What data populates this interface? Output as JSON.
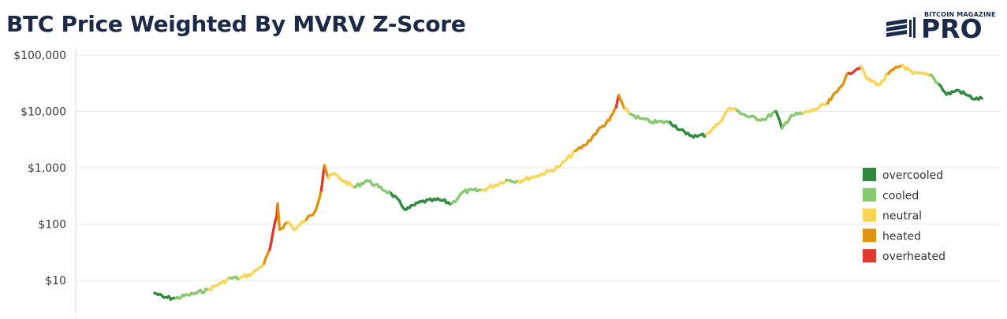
{
  "title": "BTC Price Weighted By MVRV Z-Score",
  "logo": {
    "small_text": "BITCOIN MAGAZINE",
    "big_text": "PRO"
  },
  "colors": {
    "overcooled": "#2e8b3e",
    "cooled": "#86c96e",
    "neutral": "#fbd55a",
    "heated": "#e0940e",
    "overheated": "#e03a2e",
    "grid": "#e9e9e9",
    "title": "#1c2a4a"
  },
  "chart_data": {
    "type": "line",
    "title": "BTC Price Weighted By MVRV Z-Score",
    "xlabel": "",
    "ylabel": "",
    "y_scale": "log",
    "ylim": [
      3,
      150000
    ],
    "y_ticks": [
      10,
      100,
      1000,
      10000,
      100000
    ],
    "y_tick_labels": [
      "$10",
      "$100",
      "$1,000",
      "$10,000",
      "$100,000"
    ],
    "grid": "horizontal",
    "legend_position": "right",
    "legend": [
      "overcooled",
      "cooled",
      "neutral",
      "heated",
      "overheated"
    ],
    "series": [
      {
        "points": [
          [
            "2011-08-01",
            6,
            "cooled"
          ],
          [
            "2011-09-15",
            5,
            "overcooled"
          ],
          [
            "2011-11-15",
            4.8,
            "overcooled"
          ],
          [
            "2012-01-15",
            5.5,
            "cooled"
          ],
          [
            "2012-03-01",
            6,
            "cooled"
          ],
          [
            "2012-05-01",
            7,
            "cooled"
          ],
          [
            "2012-07-01",
            9,
            "neutral"
          ],
          [
            "2012-08-15",
            11,
            "neutral"
          ],
          [
            "2012-10-01",
            11,
            "cooled"
          ],
          [
            "2012-12-01",
            13,
            "neutral"
          ],
          [
            "2013-02-01",
            20,
            "neutral"
          ],
          [
            "2013-03-01",
            35,
            "heated"
          ],
          [
            "2013-04-05",
            140,
            "overheated"
          ],
          [
            "2013-04-10",
            230,
            "overheated"
          ],
          [
            "2013-04-20",
            80,
            "heated"
          ],
          [
            "2013-06-01",
            110,
            "heated"
          ],
          [
            "2013-07-01",
            80,
            "neutral"
          ],
          [
            "2013-09-01",
            120,
            "neutral"
          ],
          [
            "2013-10-15",
            170,
            "heated"
          ],
          [
            "2013-11-15",
            400,
            "heated"
          ],
          [
            "2013-11-25",
            800,
            "overheated"
          ],
          [
            "2013-12-01",
            1100,
            "overheated"
          ],
          [
            "2013-12-20",
            650,
            "heated"
          ],
          [
            "2014-01-15",
            800,
            "neutral"
          ],
          [
            "2014-03-01",
            600,
            "neutral"
          ],
          [
            "2014-05-01",
            450,
            "neutral"
          ],
          [
            "2014-07-01",
            600,
            "cooled"
          ],
          [
            "2014-09-01",
            450,
            "cooled"
          ],
          [
            "2014-11-01",
            350,
            "cooled"
          ],
          [
            "2015-01-15",
            180,
            "overcooled"
          ],
          [
            "2015-04-01",
            250,
            "overcooled"
          ],
          [
            "2015-07-01",
            270,
            "overcooled"
          ],
          [
            "2015-09-01",
            230,
            "overcooled"
          ],
          [
            "2015-11-01",
            380,
            "cooled"
          ],
          [
            "2016-02-01",
            400,
            "cooled"
          ],
          [
            "2016-06-01",
            600,
            "neutral"
          ],
          [
            "2016-08-01",
            580,
            "cooled"
          ],
          [
            "2016-11-01",
            720,
            "neutral"
          ],
          [
            "2017-01-15",
            900,
            "neutral"
          ],
          [
            "2017-03-01",
            1100,
            "neutral"
          ],
          [
            "2017-05-15",
            2000,
            "neutral"
          ],
          [
            "2017-07-01",
            2500,
            "heated"
          ],
          [
            "2017-09-01",
            4500,
            "heated"
          ],
          [
            "2017-11-01",
            7000,
            "heated"
          ],
          [
            "2017-12-05",
            12000,
            "heated"
          ],
          [
            "2017-12-17",
            19500,
            "overheated"
          ],
          [
            "2018-01-15",
            11000,
            "heated"
          ],
          [
            "2018-02-15",
            9000,
            "neutral"
          ],
          [
            "2018-04-01",
            7500,
            "cooled"
          ],
          [
            "2018-06-01",
            6500,
            "cooled"
          ],
          [
            "2018-09-01",
            6500,
            "cooled"
          ],
          [
            "2018-11-20",
            4000,
            "overcooled"
          ],
          [
            "2019-01-15",
            3600,
            "overcooled"
          ],
          [
            "2019-03-01",
            3900,
            "overcooled"
          ],
          [
            "2019-05-01",
            6000,
            "neutral"
          ],
          [
            "2019-06-25",
            11500,
            "neutral"
          ],
          [
            "2019-08-01",
            10500,
            "neutral"
          ],
          [
            "2019-10-01",
            8000,
            "cooled"
          ],
          [
            "2019-12-15",
            7200,
            "cooled"
          ],
          [
            "2020-02-15",
            10000,
            "cooled"
          ],
          [
            "2020-03-15",
            5000,
            "overcooled"
          ],
          [
            "2020-05-01",
            8500,
            "cooled"
          ],
          [
            "2020-07-01",
            9200,
            "cooled"
          ],
          [
            "2020-09-01",
            11000,
            "neutral"
          ],
          [
            "2020-11-01",
            14000,
            "neutral"
          ],
          [
            "2020-12-20",
            23000,
            "heated"
          ],
          [
            "2021-02-15",
            48000,
            "heated"
          ],
          [
            "2021-04-14",
            63000,
            "overheated"
          ],
          [
            "2021-05-20",
            37000,
            "neutral"
          ],
          [
            "2021-07-20",
            30000,
            "neutral"
          ],
          [
            "2021-09-01",
            47000,
            "neutral"
          ],
          [
            "2021-11-08",
            67000,
            "heated"
          ],
          [
            "2022-01-01",
            47000,
            "neutral"
          ],
          [
            "2022-04-01",
            45000,
            "neutral"
          ],
          [
            "2022-05-15",
            30000,
            "cooled"
          ],
          [
            "2022-06-20",
            20000,
            "overcooled"
          ],
          [
            "2022-08-15",
            24000,
            "overcooled"
          ],
          [
            "2022-10-01",
            19500,
            "overcooled"
          ],
          [
            "2022-11-10",
            16500,
            "overcooled"
          ],
          [
            "2022-12-15",
            17000,
            "overcooled"
          ]
        ]
      }
    ]
  }
}
